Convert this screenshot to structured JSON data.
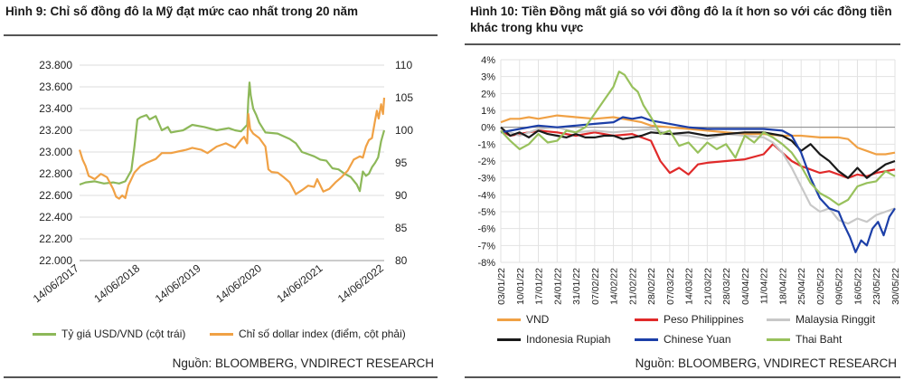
{
  "chart_data": [
    {
      "type": "line",
      "title": "Hình 9: Chỉ số đồng đô la Mỹ đạt mức cao nhất trong 20 năm",
      "x_ticks": [
        "14/06/2017",
        "14/06/2018",
        "14/06/2019",
        "14/06/2020",
        "14/06/2021",
        "14/06/2022"
      ],
      "y_left_ticks": [
        "23.800",
        "23.600",
        "23.400",
        "23.200",
        "23.000",
        "22.800",
        "22.600",
        "22.400",
        "22.200",
        "22.000"
      ],
      "y_right_ticks": [
        "110",
        "105",
        "100",
        "95",
        "90",
        "85",
        "80"
      ],
      "y_left_range": [
        22000,
        23800
      ],
      "y_right_range": [
        80,
        110
      ],
      "x_range": [
        2017.45,
        2022.45
      ],
      "grid": true,
      "legend_position": "bottom",
      "series": [
        {
          "name": "Tỷ giá USD/VND (cột trái)",
          "axis": "left",
          "color": "#8db859",
          "x": [
            2017.45,
            2017.55,
            2017.7,
            2017.85,
            2018.0,
            2018.1,
            2018.2,
            2018.3,
            2018.35,
            2018.4,
            2018.45,
            2018.55,
            2018.6,
            2018.7,
            2018.8,
            2018.9,
            2018.95,
            2019.05,
            2019.15,
            2019.3,
            2019.5,
            2019.7,
            2019.9,
            2020.0,
            2020.1,
            2020.2,
            2020.22,
            2020.24,
            2020.26,
            2020.3,
            2020.35,
            2020.4,
            2020.5,
            2020.7,
            2020.9,
            2021.0,
            2021.1,
            2021.2,
            2021.3,
            2021.4,
            2021.5,
            2021.6,
            2021.7,
            2021.8,
            2021.9,
            2022.0,
            2022.05,
            2022.1,
            2022.15,
            2022.2,
            2022.25,
            2022.3,
            2022.35,
            2022.4,
            2022.45
          ],
          "y": [
            22700,
            22720,
            22730,
            22710,
            22720,
            22710,
            22730,
            22830,
            23050,
            23300,
            23320,
            23340,
            23300,
            23330,
            23200,
            23230,
            23180,
            23190,
            23200,
            23250,
            23230,
            23200,
            23220,
            23200,
            23190,
            23250,
            23480,
            23640,
            23520,
            23400,
            23340,
            23270,
            23180,
            23170,
            23120,
            23080,
            23000,
            22980,
            22960,
            22930,
            22920,
            22850,
            22840,
            22800,
            22770,
            22700,
            22640,
            22820,
            22780,
            22800,
            22860,
            22900,
            22950,
            23100,
            23200
          ]
        },
        {
          "name": "Chỉ số dollar index (điểm, cột phải)",
          "axis": "right",
          "color": "#f0a145",
          "x": [
            2017.45,
            2017.5,
            2017.55,
            2017.6,
            2017.7,
            2017.8,
            2017.9,
            2018.0,
            2018.05,
            2018.1,
            2018.15,
            2018.2,
            2018.25,
            2018.35,
            2018.45,
            2018.55,
            2018.7,
            2018.8,
            2018.95,
            2019.1,
            2019.2,
            2019.3,
            2019.45,
            2019.55,
            2019.7,
            2019.85,
            2020.0,
            2020.1,
            2020.15,
            2020.2,
            2020.22,
            2020.25,
            2020.3,
            2020.4,
            2020.5,
            2020.55,
            2020.6,
            2020.7,
            2020.8,
            2020.9,
            2021.0,
            2021.1,
            2021.2,
            2021.3,
            2021.35,
            2021.45,
            2021.55,
            2021.65,
            2021.75,
            2021.85,
            2021.95,
            2022.05,
            2022.1,
            2022.15,
            2022.2,
            2022.25,
            2022.3,
            2022.33,
            2022.36,
            2022.4,
            2022.43,
            2022.45
          ],
          "y": [
            97.0,
            95.5,
            94.5,
            93.0,
            92.5,
            93.3,
            92.8,
            91.0,
            89.8,
            89.5,
            90.0,
            89.6,
            91.5,
            93.5,
            94.5,
            95.0,
            95.6,
            96.5,
            96.5,
            96.8,
            97.0,
            97.3,
            97.0,
            96.5,
            97.5,
            98.0,
            97.3,
            98.5,
            99.0,
            98.0,
            102.5,
            100.2,
            99.5,
            98.8,
            97.5,
            94.0,
            93.6,
            93.5,
            92.8,
            92.0,
            90.2,
            90.8,
            91.5,
            91.3,
            92.5,
            90.6,
            91.0,
            92.0,
            92.8,
            93.8,
            95.5,
            96.0,
            95.8,
            97.5,
            98.5,
            98.8,
            101.5,
            103.0,
            101.8,
            104.0,
            102.5,
            105.0
          ]
        }
      ],
      "source": "Nguồn: BLOOMBERG, VNDIRECT RESEARCH"
    },
    {
      "type": "line",
      "title": "Hình 10: Tiền Đồng mất giá so với đồng đô la ít hơn so với các đồng tiền khác trong khu vực",
      "x_ticks": [
        "03/01/22",
        "10/01/22",
        "17/01/22",
        "24/01/22",
        "31/01/22",
        "07/02/22",
        "14/02/22",
        "21/02/22",
        "28/02/22",
        "07/03/22",
        "14/03/22",
        "21/03/22",
        "28/03/22",
        "04/04/22",
        "11/04/22",
        "18/04/22",
        "25/04/22",
        "02/05/22",
        "09/05/22",
        "16/05/22",
        "23/05/22",
        "30/05/22"
      ],
      "y_ticks": [
        "4%",
        "3%",
        "2%",
        "1%",
        "0%",
        "-1%",
        "-2%",
        "-3%",
        "-4%",
        "-5%",
        "-6%",
        "-7%",
        "-8%"
      ],
      "y_range": [
        -8,
        4
      ],
      "x_range": [
        0,
        21
      ],
      "grid": true,
      "legend_position": "bottom",
      "series": [
        {
          "name": "VND",
          "color": "#f0a145",
          "x": [
            0,
            0.5,
            1,
            1.5,
            2,
            3,
            4,
            5,
            6,
            7,
            7.5,
            8,
            9,
            10,
            11,
            12,
            13,
            14,
            15,
            16,
            17,
            18,
            18.5,
            19,
            19.5,
            20,
            20.5,
            21
          ],
          "y": [
            0.3,
            0.5,
            0.5,
            0.6,
            0.5,
            0.7,
            0.6,
            0.5,
            0.6,
            0.4,
            0.3,
            0.1,
            0.0,
            -0.1,
            -0.2,
            -0.3,
            -0.4,
            -0.4,
            -0.5,
            -0.5,
            -0.6,
            -0.6,
            -0.7,
            -1.2,
            -1.4,
            -1.6,
            -1.6,
            -1.5
          ]
        },
        {
          "name": "Peso Philippines",
          "color": "#e02a2a",
          "x": [
            0,
            0.5,
            1,
            2,
            3,
            4,
            5,
            6,
            7,
            8,
            8.5,
            9,
            9.5,
            10,
            10.5,
            11,
            12,
            13,
            14,
            14.5,
            15,
            15.5,
            16,
            16.5,
            17,
            17.5,
            18,
            18.5,
            19,
            19.5,
            20,
            20.5,
            21
          ],
          "y": [
            -0.2,
            -0.5,
            -0.4,
            -0.2,
            -0.3,
            -0.5,
            -0.3,
            -0.5,
            -0.4,
            -0.8,
            -2.0,
            -2.7,
            -2.4,
            -2.8,
            -2.2,
            -2.1,
            -2.0,
            -1.9,
            -1.6,
            -1.0,
            -1.5,
            -2.0,
            -2.3,
            -2.5,
            -2.7,
            -2.6,
            -2.8,
            -3.0,
            -2.8,
            -2.9,
            -2.7,
            -2.6,
            -2.5
          ]
        },
        {
          "name": "Malaysia Ringgit",
          "color": "#c8c8c8",
          "x": [
            0,
            0.5,
            1,
            2,
            3,
            4,
            5,
            6,
            7,
            8,
            9,
            10,
            11,
            12,
            13,
            14,
            14.5,
            15,
            15.5,
            16,
            16.5,
            17,
            17.5,
            18,
            18.5,
            19,
            19.5,
            20,
            20.5,
            21
          ],
          "y": [
            -0.2,
            -0.3,
            -0.5,
            -0.1,
            0.0,
            -0.3,
            -0.2,
            -0.3,
            -0.2,
            -0.1,
            -0.4,
            -0.5,
            -0.7,
            -0.4,
            -0.5,
            -0.6,
            -0.9,
            -1.5,
            -2.4,
            -3.5,
            -4.6,
            -5.0,
            -4.8,
            -5.5,
            -5.7,
            -5.4,
            -5.6,
            -5.2,
            -5.0,
            -4.8
          ]
        },
        {
          "name": "Indonesia Rupiah",
          "color": "#1a1a1a",
          "x": [
            0,
            0.5,
            1,
            1.5,
            2,
            2.5,
            3,
            3.5,
            4,
            4.5,
            5,
            5.5,
            6,
            6.5,
            7,
            7.5,
            8,
            9,
            10,
            11,
            12,
            13,
            14,
            15,
            15.5,
            16,
            16.5,
            17,
            17.5,
            18,
            18.5,
            19,
            19.5,
            20,
            20.5,
            21
          ],
          "y": [
            0.0,
            -0.5,
            -0.3,
            -0.6,
            -0.2,
            -0.4,
            -0.5,
            -0.6,
            -0.4,
            -0.6,
            -0.6,
            -0.5,
            -0.5,
            -0.7,
            -0.6,
            -0.5,
            -0.3,
            -0.4,
            -0.3,
            -0.5,
            -0.4,
            -0.3,
            -0.3,
            -0.5,
            -0.8,
            -1.4,
            -1.0,
            -1.6,
            -2.0,
            -2.6,
            -3.0,
            -2.4,
            -3.0,
            -2.6,
            -2.2,
            -2.0
          ]
        },
        {
          "name": "Chinese Yuan",
          "color": "#1c3fa8",
          "x": [
            0,
            1,
            2,
            3,
            4,
            5,
            6,
            6.5,
            7,
            7.5,
            8,
            9,
            10,
            11,
            12,
            13,
            14,
            15,
            15.5,
            16,
            16.5,
            17,
            17.5,
            18,
            18.3,
            18.6,
            18.9,
            19.2,
            19.5,
            19.8,
            20.1,
            20.4,
            20.7,
            21
          ],
          "y": [
            -0.3,
            -0.1,
            0.1,
            0.0,
            0.1,
            0.2,
            0.3,
            0.6,
            0.5,
            0.6,
            0.4,
            0.2,
            0.0,
            -0.1,
            -0.1,
            -0.1,
            -0.1,
            -0.2,
            -0.5,
            -1.5,
            -3.0,
            -4.2,
            -4.8,
            -5.0,
            -5.8,
            -6.5,
            -7.4,
            -6.7,
            -7.0,
            -6.0,
            -5.6,
            -6.4,
            -5.3,
            -4.8
          ]
        },
        {
          "name": "Thai Baht",
          "color": "#98c15c",
          "x": [
            0,
            0.5,
            1,
            1.5,
            2,
            2.5,
            3,
            3.5,
            4,
            4.5,
            5,
            5.5,
            6,
            6.3,
            6.6,
            7,
            7.3,
            7.6,
            8,
            8.5,
            9,
            9.5,
            10,
            10.5,
            11,
            11.5,
            12,
            12.5,
            13,
            13.5,
            14,
            14.5,
            15,
            15.5,
            16,
            16.5,
            17,
            17.5,
            18,
            18.5,
            19,
            19.5,
            20,
            20.5,
            21
          ],
          "y": [
            -0.2,
            -0.8,
            -1.3,
            -1.0,
            -0.4,
            -0.9,
            -0.8,
            -0.2,
            -0.3,
            0.0,
            0.8,
            1.6,
            2.4,
            3.3,
            3.1,
            2.4,
            2.1,
            1.3,
            0.6,
            -0.4,
            -0.2,
            -1.1,
            -0.9,
            -1.5,
            -0.9,
            -1.3,
            -1.0,
            -1.8,
            -0.5,
            -0.9,
            -0.3,
            -0.6,
            -1.0,
            -1.5,
            -2.3,
            -3.3,
            -3.9,
            -4.2,
            -4.6,
            -4.3,
            -3.5,
            -3.3,
            -3.2,
            -2.6,
            -2.9
          ]
        }
      ],
      "source": "Nguồn: BLOOMBERG, VNDIRECT RESEARCH"
    }
  ]
}
